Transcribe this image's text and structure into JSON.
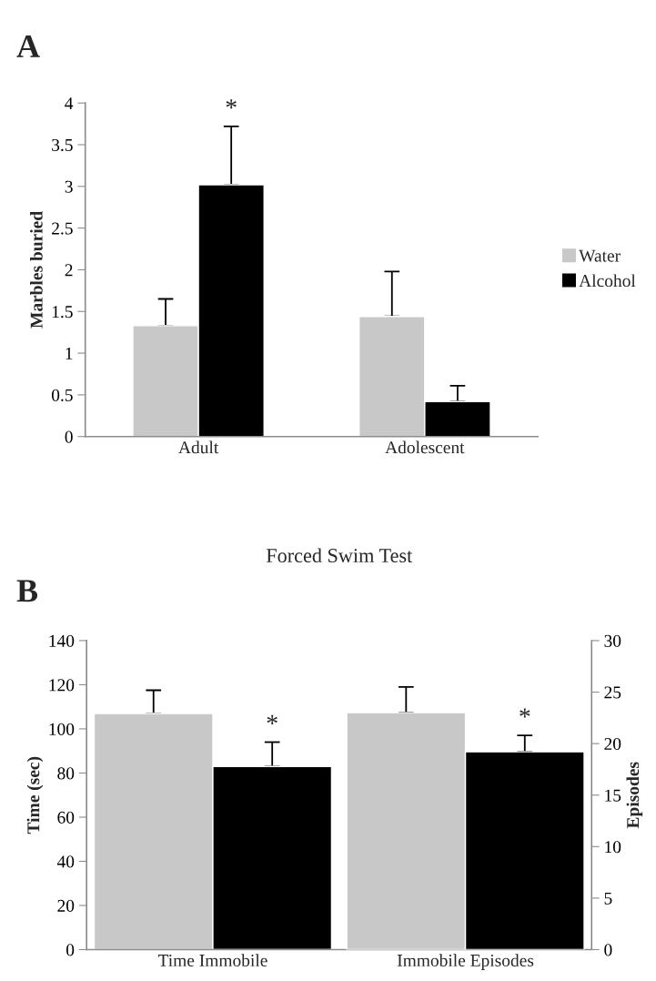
{
  "chart_data": [
    {
      "type": "bar",
      "title": null,
      "ylabel": "Marbles buried",
      "categories": [
        "Adult",
        "Adolescent"
      ],
      "series": [
        {
          "name": "Water",
          "color": "#c8c8c8",
          "values": [
            1.33,
            1.44
          ],
          "errors": [
            [
              1.33,
              1.65
            ],
            [
              1.44,
              1.98
            ]
          ]
        },
        {
          "name": "Alcohol",
          "color": "#000000",
          "values": [
            3.02,
            0.42
          ],
          "errors": [
            [
              3.02,
              3.72
            ],
            [
              0.42,
              0.61
            ]
          ],
          "value_labels": [
            "*",
            null
          ]
        }
      ],
      "ylim": [
        0,
        4
      ],
      "yticks": [
        0,
        0.5,
        1,
        1.5,
        2,
        2.5,
        3,
        3.5,
        4
      ],
      "legend": "right",
      "grid": false,
      "annotations": [
        "A"
      ]
    },
    {
      "type": "bar",
      "title": "Forced Swim Test",
      "ylabel": "Time (sec)",
      "y2label": "Episodes",
      "categories": [
        "Time Immobile",
        "Immobile Episodes"
      ],
      "series": [
        {
          "color": "#c8c8c8",
          "values": [
            107,
            null
          ],
          "errors": [
            [
              107,
              117.5
            ],
            null
          ]
        },
        {
          "color": "#000000",
          "values": [
            83,
            null
          ],
          "errors": [
            [
              83,
              94
            ],
            null
          ],
          "value_labels": [
            "*",
            null
          ]
        },
        {
          "color": "#c8c8c8",
          "values": [
            null,
            23
          ],
          "errors": [
            null,
            [
              23,
              25.5
            ]
          ],
          "axis": "y2"
        },
        {
          "color": "#000000",
          "values": [
            null,
            19.2
          ],
          "errors": [
            null,
            [
              19.2,
              20.8
            ]
          ],
          "axis": "y2",
          "value_labels": [
            null,
            "*"
          ]
        }
      ],
      "ylim": [
        0,
        140
      ],
      "yticks": [
        0,
        20,
        40,
        60,
        80,
        100,
        120,
        140
      ],
      "y2lim": [
        0,
        30
      ],
      "y2ticks": [
        0,
        5,
        10,
        15,
        20,
        25,
        30
      ],
      "legend": false,
      "grid": false,
      "annotations": [
        "B"
      ]
    }
  ]
}
